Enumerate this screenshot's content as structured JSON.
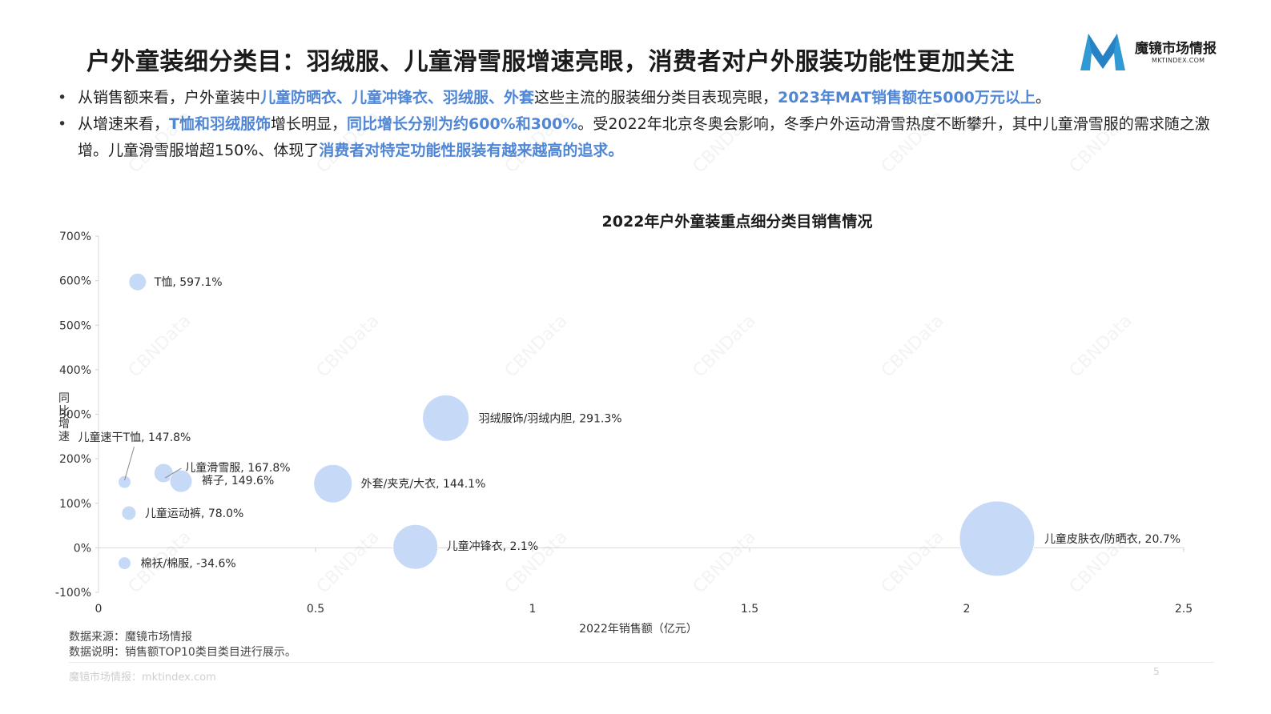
{
  "header": {
    "title": "户外童装细分类目：羽绒服、儿童滑雪服增速亮眼，消费者对户外服装功能性更加关注",
    "logo_cn": "魔镜市场情报",
    "logo_en": "MKTINDEX.COM"
  },
  "bullets": [
    {
      "p1": "从销售额来看，户外童装中",
      "h1": "儿童防晒衣、儿童冲锋衣、羽绒服、外套",
      "p2": "这些主流的服装细分类目表现亮眼，",
      "h2": "2023年MAT销售额在5000万元以上",
      "p3": "。"
    },
    {
      "p1": "从增速来看，",
      "h1": "T恤和羽绒服饰",
      "p2": "增长明显，",
      "h2": "同比增长分别为约600%和300%",
      "p3": "。受2022年北京冬奥会影响，冬季户外运动滑雪热度不断攀升，其中儿童滑雪服的需求随之激增。儿童滑雪服增超150%、体现了",
      "h3": "消费者对特定功能性服装有越来越高的追求。"
    }
  ],
  "chart_data": {
    "type": "scatter",
    "title": "2022年户外童装重点细分类目销售情况",
    "xlabel": "2022年销售额（亿元）",
    "ylabel": "同比增速",
    "xlim": [
      0,
      2.5
    ],
    "ylim": [
      -100,
      700
    ],
    "xticks": [
      "0",
      "0.5",
      "1",
      "1.5",
      "2",
      "2.5"
    ],
    "yticks": [
      "700%",
      "600%",
      "500%",
      "400%",
      "300%",
      "200%",
      "100%",
      "0%",
      "-100%"
    ],
    "bubble_color": "#c6d9f7",
    "points": [
      {
        "label": "T恤, 597.1%",
        "x": 0.09,
        "y": 597.1
      },
      {
        "label": "羽绒服饰/羽绒内胆, 291.3%",
        "x": 0.8,
        "y": 291.3
      },
      {
        "label": "儿童速干T恤, 147.8%",
        "x": 0.06,
        "y": 147.8
      },
      {
        "label": "儿童滑雪服, 167.8%",
        "x": 0.15,
        "y": 167.8
      },
      {
        "label": "裤子, 149.6%",
        "x": 0.19,
        "y": 149.6
      },
      {
        "label": "外套/夹克/大衣, 144.1%",
        "x": 0.54,
        "y": 144.1
      },
      {
        "label": "儿童运动裤, 78.0%",
        "x": 0.07,
        "y": 78.0
      },
      {
        "label": "儿童冲锋衣, 2.1%",
        "x": 0.73,
        "y": 2.1
      },
      {
        "label": "儿童皮肤衣/防晒衣, 20.7%",
        "x": 2.07,
        "y": 20.7
      },
      {
        "label": "棉袄/棉服, -34.6%",
        "x": 0.06,
        "y": -34.6
      }
    ]
  },
  "footer": {
    "source": "数据来源：魔镜市场情报",
    "note": "数据说明：销售额TOP10类目类目进行展示。",
    "site": "魔镜市场情报：mktindex.com",
    "page": "5"
  },
  "watermark": "CBNData"
}
